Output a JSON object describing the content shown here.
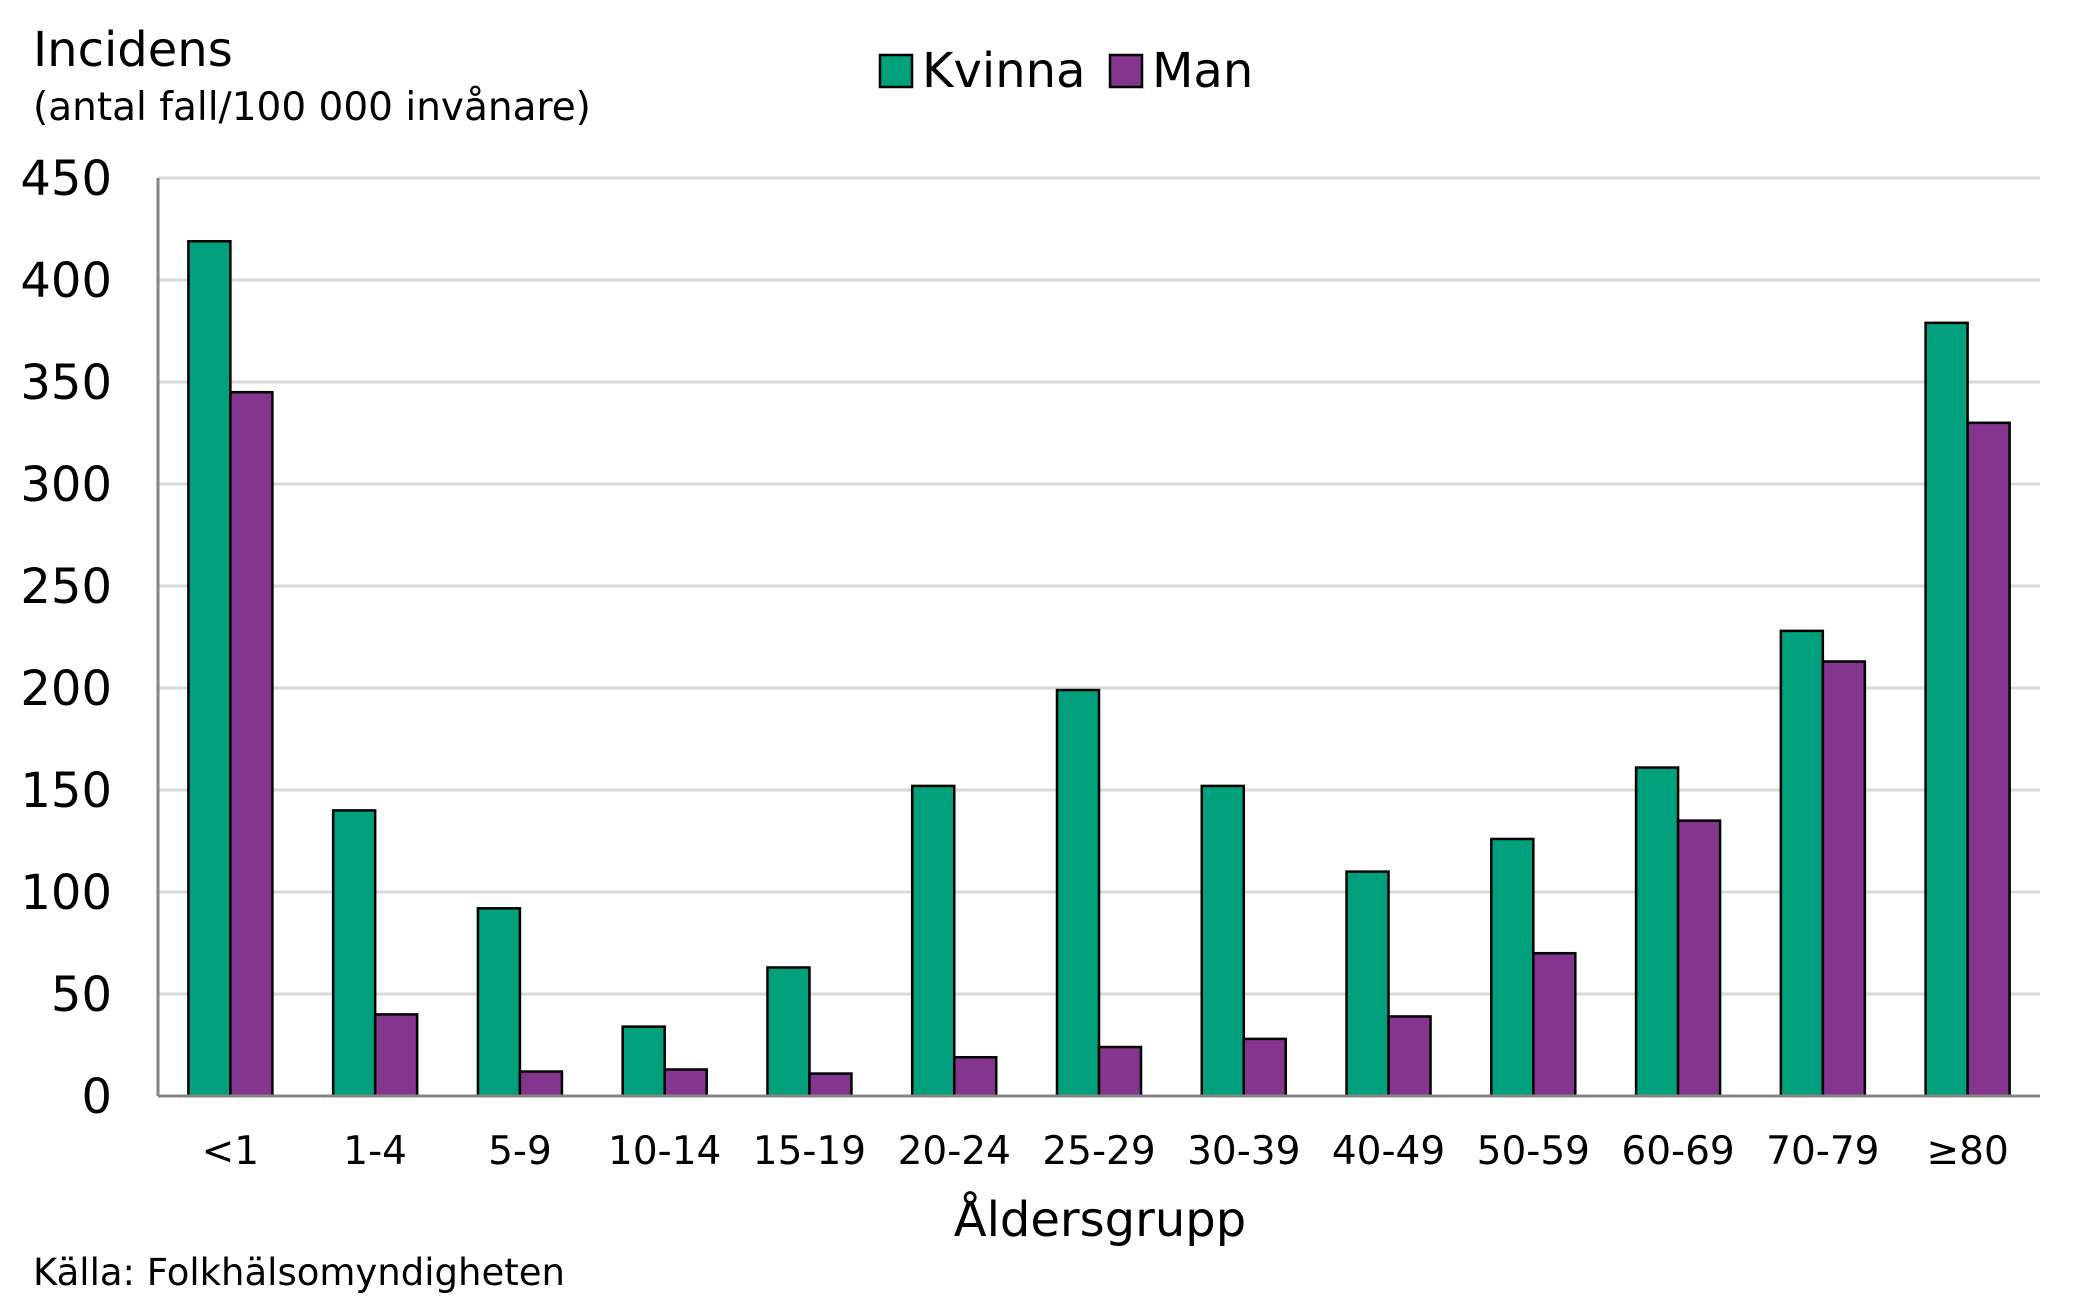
{
  "chart_data": {
    "type": "bar",
    "ylabel": "Incidens",
    "ylabel_sub": "(antal fall/100 000 invånare)",
    "xlabel": "Åldersgrupp",
    "source": "Källa: Folkhälsomyndigheten",
    "categories": [
      "<1",
      "1-4",
      "5-9",
      "10-14",
      "15-19",
      "20-24",
      "25-29",
      "30-39",
      "40-49",
      "50-59",
      "60-69",
      "70-79",
      "≥80"
    ],
    "series": [
      {
        "name": "Kvinna",
        "color": "#00a07c",
        "values": [
          419,
          140,
          92,
          34,
          63,
          152,
          199,
          152,
          110,
          126,
          161,
          228,
          379
        ]
      },
      {
        "name": "Man",
        "color": "#84358e",
        "values": [
          345,
          40,
          12,
          13,
          11,
          19,
          24,
          28,
          39,
          70,
          135,
          213,
          330
        ]
      }
    ],
    "ylim": [
      0,
      450
    ],
    "yticks": [
      0,
      50,
      100,
      150,
      200,
      250,
      300,
      350,
      400,
      450
    ],
    "grid": true,
    "legend_position": "top-center"
  }
}
